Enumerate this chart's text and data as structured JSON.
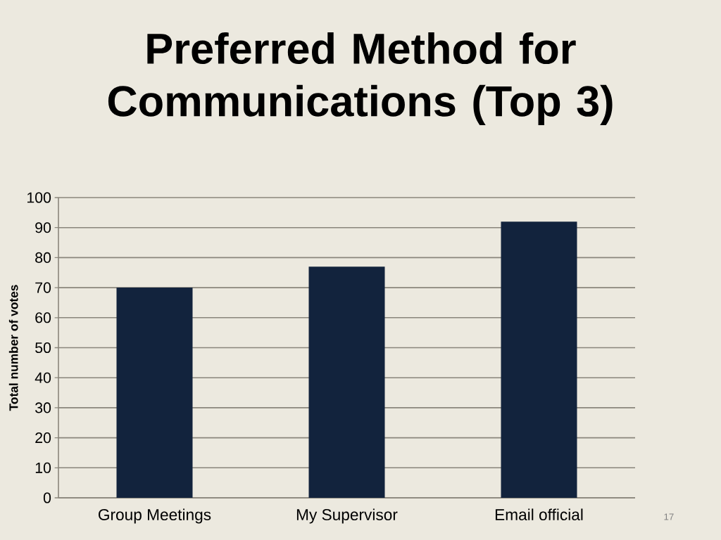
{
  "chart_data": {
    "type": "bar",
    "title": "Preferred Method for Communications (Top 3)",
    "ylabel": "Total number of votes",
    "categories": [
      "Group Meetings",
      "My Supervisor",
      "Email official"
    ],
    "values": [
      70,
      77,
      92
    ],
    "color": "#12233d",
    "ylim": [
      0,
      100
    ],
    "yticks": [
      0,
      10,
      20,
      30,
      40,
      50,
      60,
      70,
      80,
      90,
      100
    ],
    "grid": "y",
    "annotations": [
      "17"
    ]
  }
}
